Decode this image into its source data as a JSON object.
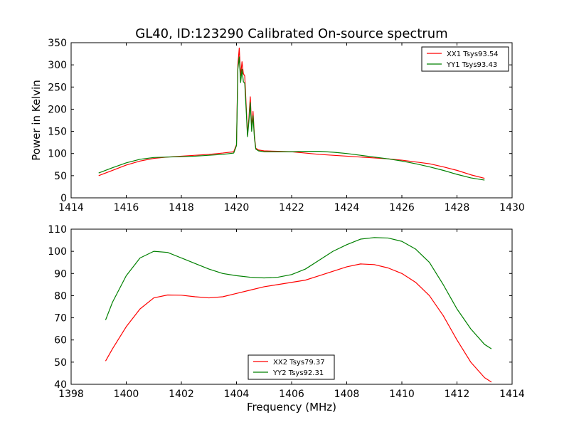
{
  "figure": {
    "title": "GL40, ID:123290 Calibrated On-source spectrum"
  },
  "chart_data": [
    {
      "type": "line",
      "title": "GL40, ID:123290 Calibrated On-source spectrum",
      "xlabel": "",
      "ylabel": "Power in Kelvin",
      "xlim": [
        1414,
        1430
      ],
      "ylim": [
        0,
        350
      ],
      "xticks": [
        1414,
        1416,
        1418,
        1420,
        1422,
        1424,
        1426,
        1428,
        1430
      ],
      "yticks": [
        0,
        50,
        100,
        150,
        200,
        250,
        300,
        350
      ],
      "grid": false,
      "legend_position": "top-right",
      "series": [
        {
          "name": "XX1 Tsys93.54",
          "color": "#ff0000",
          "x": [
            1415.0,
            1415.5,
            1416.0,
            1416.5,
            1417.0,
            1417.5,
            1418.0,
            1418.5,
            1419.0,
            1419.5,
            1419.9,
            1420.0,
            1420.05,
            1420.1,
            1420.15,
            1420.2,
            1420.25,
            1420.3,
            1420.35,
            1420.4,
            1420.45,
            1420.5,
            1420.55,
            1420.6,
            1420.65,
            1420.7,
            1420.8,
            1421.0,
            1421.5,
            1422.0,
            1422.5,
            1423.0,
            1423.5,
            1424.0,
            1424.5,
            1425.0,
            1425.5,
            1426.0,
            1426.5,
            1427.0,
            1427.5,
            1428.0,
            1428.5,
            1429.0
          ],
          "y": [
            50,
            62,
            74,
            83,
            89,
            92,
            94,
            96,
            98,
            101,
            104,
            120,
            300,
            338,
            275,
            307,
            280,
            275,
            210,
            142,
            180,
            228,
            160,
            195,
            140,
            112,
            108,
            106,
            105,
            104,
            101,
            98,
            96,
            94,
            92,
            90,
            88,
            85,
            81,
            77,
            70,
            62,
            52,
            44
          ]
        },
        {
          "name": "YY1 Tsys93.43",
          "color": "#008000",
          "x": [
            1415.0,
            1415.5,
            1416.0,
            1416.5,
            1417.0,
            1417.5,
            1418.0,
            1418.5,
            1419.0,
            1419.5,
            1419.9,
            1420.0,
            1420.05,
            1420.1,
            1420.15,
            1420.2,
            1420.25,
            1420.3,
            1420.35,
            1420.4,
            1420.45,
            1420.5,
            1420.55,
            1420.6,
            1420.65,
            1420.7,
            1420.8,
            1421.0,
            1421.5,
            1422.0,
            1422.5,
            1423.0,
            1423.5,
            1424.0,
            1424.5,
            1425.0,
            1425.5,
            1426.0,
            1426.5,
            1427.0,
            1427.5,
            1428.0,
            1428.5,
            1429.0
          ],
          "y": [
            56,
            68,
            79,
            87,
            91,
            92,
            93,
            94,
            96,
            98,
            101,
            118,
            290,
            318,
            260,
            290,
            262,
            258,
            200,
            138,
            172,
            215,
            150,
            185,
            135,
            110,
            106,
            104,
            104,
            104,
            105,
            105,
            103,
            100,
            96,
            92,
            88,
            83,
            77,
            70,
            62,
            53,
            45,
            40
          ]
        }
      ]
    },
    {
      "type": "line",
      "title": "",
      "xlabel": "Frequency (MHz)",
      "ylabel": "",
      "xlim": [
        1398,
        1414
      ],
      "ylim": [
        40,
        110
      ],
      "xticks": [
        1398,
        1400,
        1402,
        1404,
        1406,
        1408,
        1410,
        1412,
        1414
      ],
      "yticks": [
        40,
        50,
        60,
        70,
        80,
        90,
        100,
        110
      ],
      "grid": false,
      "legend_position": "bottom-center",
      "series": [
        {
          "name": "XX2 Tsys79.37",
          "color": "#ff0000",
          "x": [
            1399.25,
            1399.5,
            1400.0,
            1400.5,
            1401.0,
            1401.5,
            1402.0,
            1402.5,
            1403.0,
            1403.5,
            1404.0,
            1404.5,
            1405.0,
            1405.5,
            1406.0,
            1406.5,
            1407.0,
            1407.5,
            1408.0,
            1408.5,
            1409.0,
            1409.5,
            1410.0,
            1410.5,
            1411.0,
            1411.5,
            1412.0,
            1412.5,
            1413.0,
            1413.25
          ],
          "y": [
            50.5,
            56,
            66,
            74,
            79,
            80.3,
            80.2,
            79.5,
            79,
            79.5,
            81,
            82.5,
            84,
            85,
            86,
            87,
            89,
            91,
            93,
            94.3,
            94,
            92.5,
            90,
            86,
            80,
            71,
            60,
            50,
            43,
            41
          ]
        },
        {
          "name": "YY2 Tsys92.31",
          "color": "#008000",
          "x": [
            1399.25,
            1399.5,
            1400.0,
            1400.5,
            1401.0,
            1401.5,
            1402.0,
            1402.5,
            1403.0,
            1403.5,
            1404.0,
            1404.5,
            1405.0,
            1405.5,
            1406.0,
            1406.5,
            1407.0,
            1407.5,
            1408.0,
            1408.5,
            1409.0,
            1409.5,
            1410.0,
            1410.5,
            1411.0,
            1411.5,
            1412.0,
            1412.5,
            1413.0,
            1413.25
          ],
          "y": [
            69,
            77,
            89,
            97,
            100,
            99.5,
            97,
            94.5,
            92,
            90,
            89,
            88.3,
            88,
            88.3,
            89.5,
            92,
            96,
            100,
            103,
            105.5,
            106.2,
            106,
            104.5,
            101,
            95,
            85,
            74,
            65,
            58,
            56
          ]
        }
      ]
    }
  ]
}
